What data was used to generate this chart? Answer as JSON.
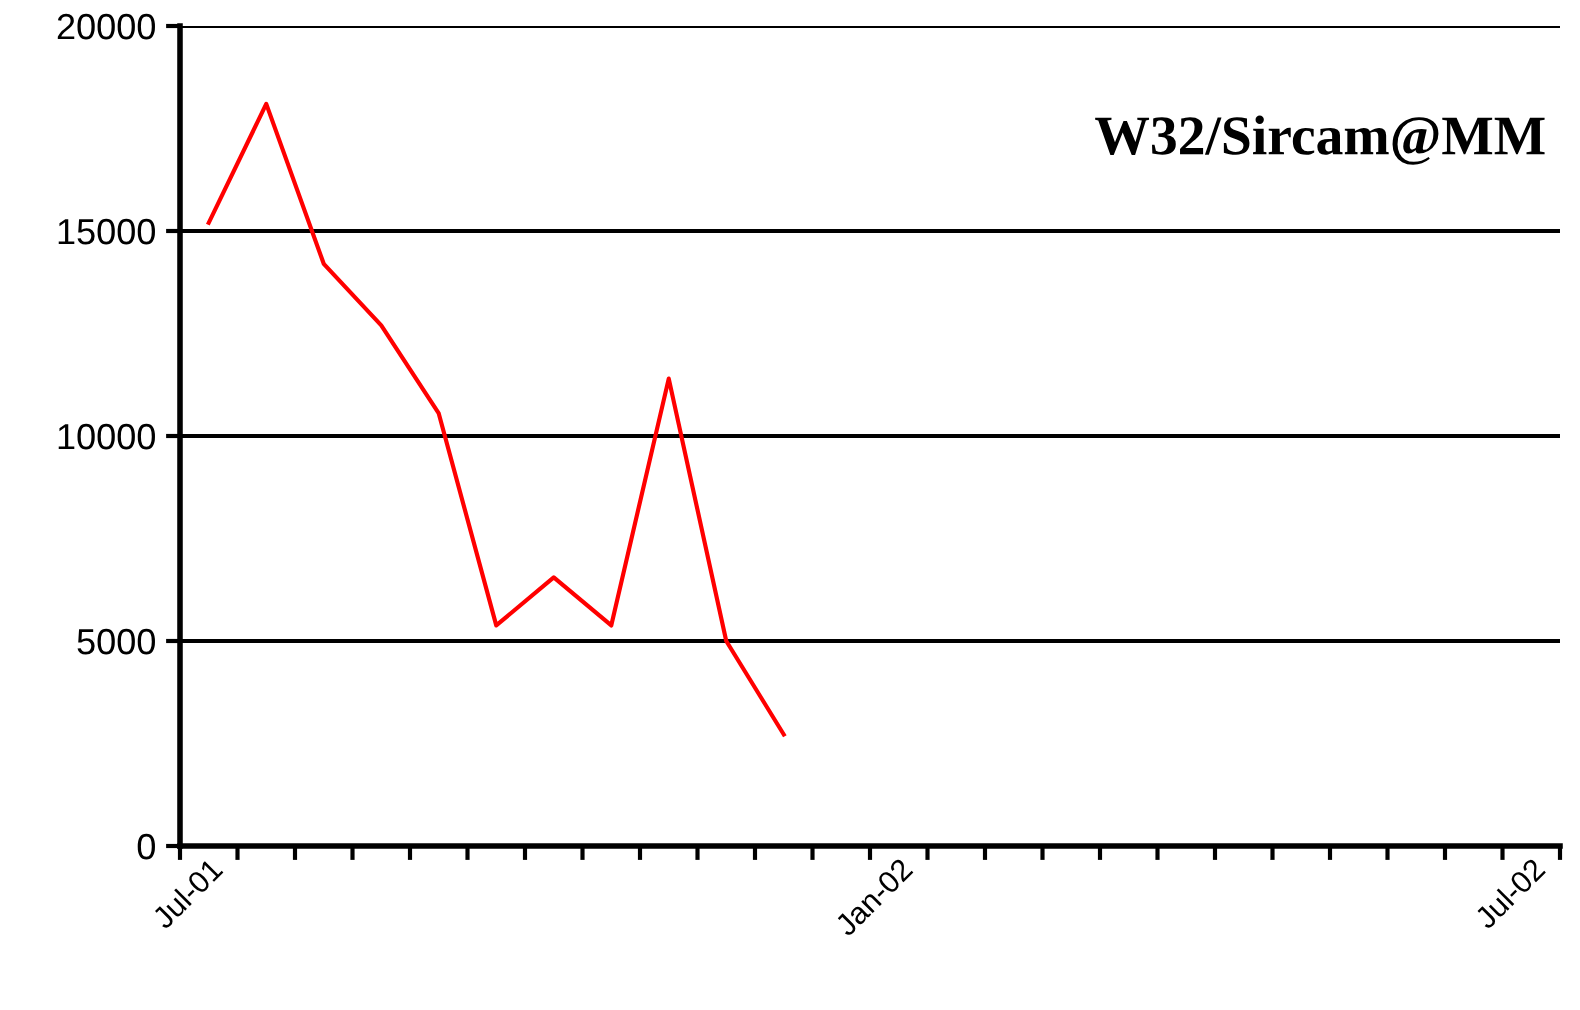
{
  "chart_data": {
    "type": "line",
    "title": "W32/Sircam@MM",
    "categories": [
      "Jul-01",
      null,
      null,
      null,
      null,
      null,
      null,
      null,
      null,
      null,
      null,
      null,
      "Jan-02",
      null,
      null,
      null,
      null,
      null,
      null,
      null,
      null,
      null,
      null,
      "Jul-02"
    ],
    "series": [
      {
        "color": "#ff0000",
        "values": [
          15200,
          18100,
          14200,
          12700,
          10550,
          5380,
          6550,
          5380,
          11400,
          5000,
          2720,
          null,
          null,
          null,
          null,
          null,
          null,
          null,
          null,
          null,
          null,
          null,
          null,
          null
        ]
      }
    ],
    "ylim": [
      0,
      20000
    ],
    "yticks": [
      0,
      5000,
      10000,
      15000,
      20000
    ],
    "grid": "y",
    "legend": false,
    "marker": "none",
    "line_style": "solid"
  }
}
